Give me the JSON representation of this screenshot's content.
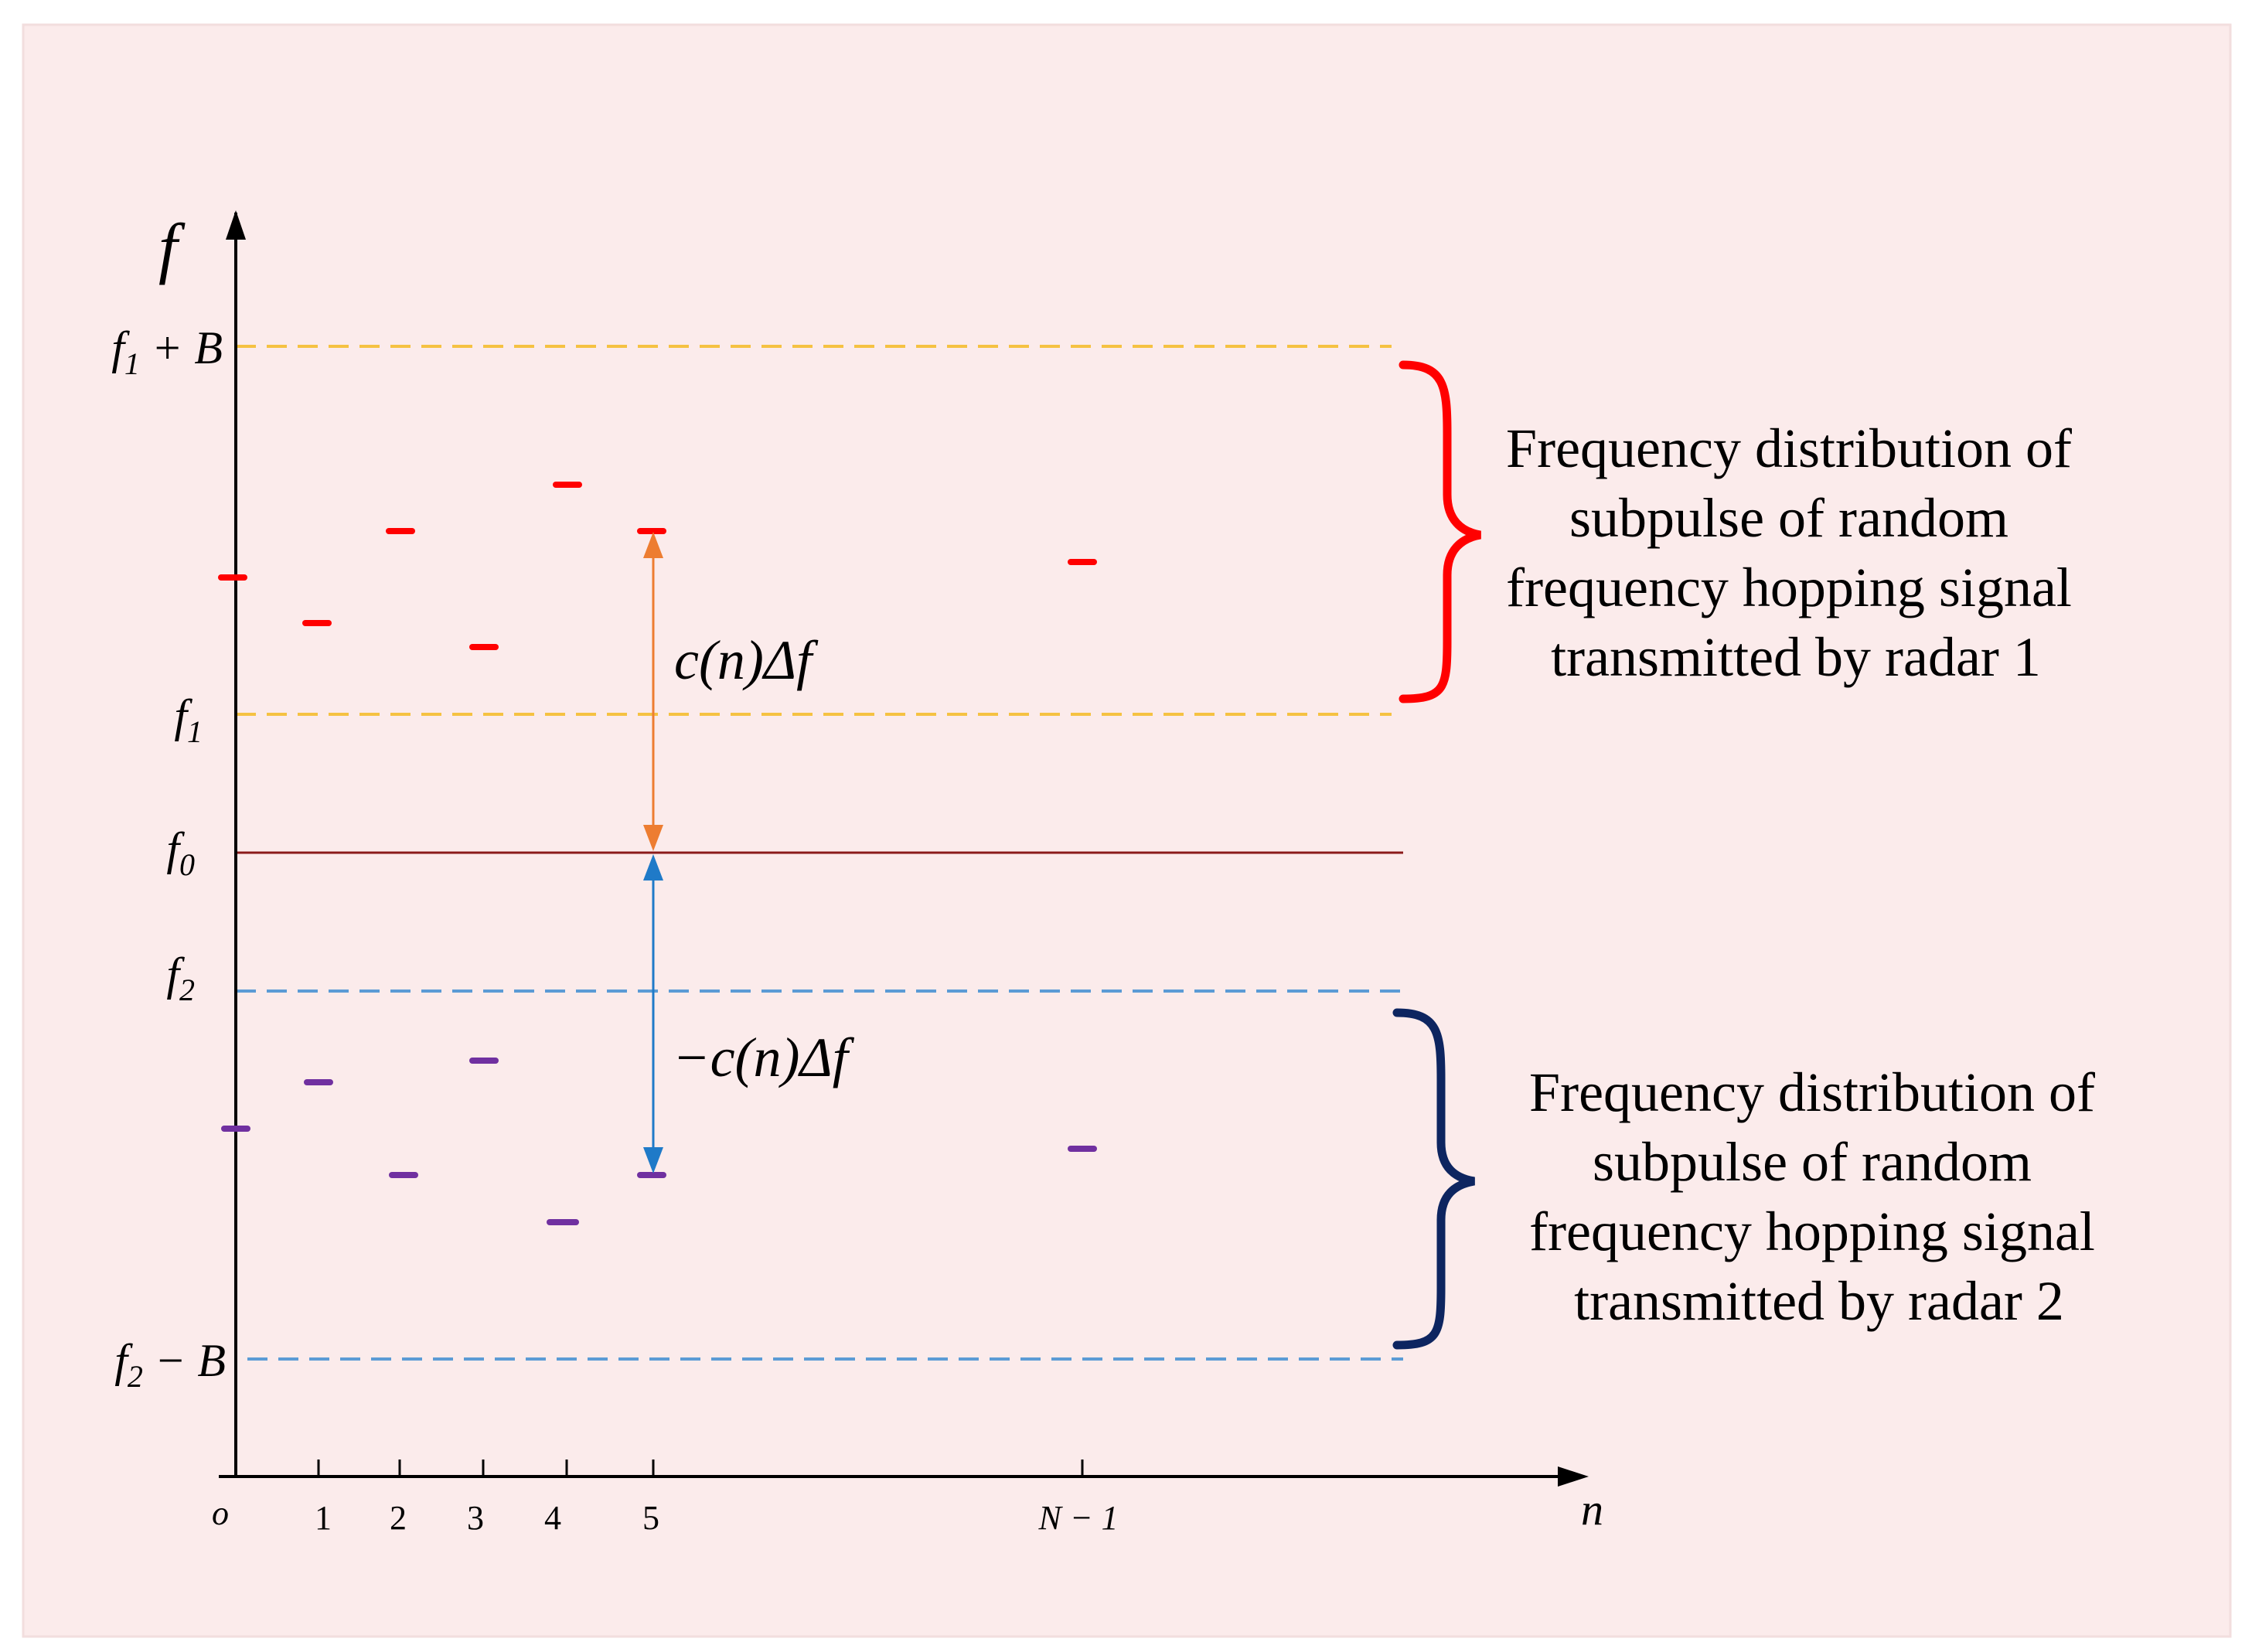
{
  "axes": {
    "y_label": "f",
    "x_label": "n",
    "origin_label": "o",
    "x_ticks": [
      "1",
      "2",
      "3",
      "4",
      "5",
      "N − 1"
    ]
  },
  "levels": {
    "f1_plus_B": {
      "base": "f",
      "sub": "1",
      "suffix": " + B"
    },
    "f1": {
      "base": "f",
      "sub": "1"
    },
    "f0": {
      "base": "f",
      "sub": "0"
    },
    "f2": {
      "base": "f",
      "sub": "2"
    },
    "f2_minus_B": {
      "base": "f",
      "sub": "2",
      "suffix": " − B"
    }
  },
  "offsets": {
    "up_label": "c(n)Δf",
    "down_label": "−c(n)Δf"
  },
  "groups": {
    "radar1": {
      "lines": [
        "Frequency distribution of",
        "subpulse of random",
        "frequency hopping signal",
        "transmitted by radar 1"
      ]
    },
    "radar2": {
      "lines": [
        "Frequency distribution of",
        "subpulse of random",
        "frequency hopping signal",
        "transmitted by radar 2"
      ]
    }
  },
  "colors": {
    "background": "#fbebeb",
    "radar1_level_lines": "#f5c242",
    "radar2_level_lines": "#5b9bd5",
    "center_line": "#8b1a1a",
    "radar1_marks": "#ff0000",
    "radar2_marks": "#7030a0",
    "radar1_brace": "#ff0000",
    "radar2_brace": "#0d2560",
    "up_arrow": "#ed7d31",
    "down_arrow": "#1f7ac8"
  }
}
